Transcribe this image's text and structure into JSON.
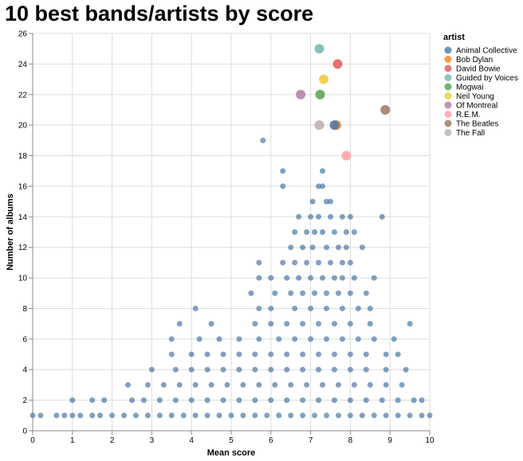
{
  "chart_data": {
    "type": "scatter",
    "title": "10 best bands/artists by score",
    "xlabel": "Mean score",
    "ylabel": "Number of albums",
    "xlim": [
      0,
      10
    ],
    "ylim": [
      0,
      26
    ],
    "x_ticks": [
      "0",
      "1",
      "2",
      "3",
      "4",
      "5",
      "6",
      "7",
      "8",
      "9",
      "10"
    ],
    "y_ticks": [
      "0",
      "2",
      "4",
      "6",
      "8",
      "10",
      "12",
      "14",
      "16",
      "18",
      "20",
      "22",
      "24",
      "26"
    ],
    "grid": true,
    "legend": {
      "title": "artist",
      "placement": "right",
      "entries": [
        {
          "name": "Animal Collective",
          "color": "#4c78a8"
        },
        {
          "name": "Bob Dylan",
          "color": "#f58518"
        },
        {
          "name": "David Bowie",
          "color": "#e45756"
        },
        {
          "name": "Guided by Voices",
          "color": "#72b7b2"
        },
        {
          "name": "Mogwai",
          "color": "#54a24b"
        },
        {
          "name": "Neil Young",
          "color": "#eeca3b"
        },
        {
          "name": "Of Montreal",
          "color": "#b279a2"
        },
        {
          "name": "R.E.M.",
          "color": "#ff9da6"
        },
        {
          "name": "The Beatles",
          "color": "#9d755d"
        },
        {
          "name": "The Fall",
          "color": "#bab0ac"
        }
      ]
    },
    "highlighted": [
      {
        "artist": "Guided by Voices",
        "x": 7.22,
        "y": 25
      },
      {
        "artist": "David Bowie",
        "x": 7.68,
        "y": 24
      },
      {
        "artist": "Neil Young",
        "x": 7.33,
        "y": 23
      },
      {
        "artist": "Of Montreal",
        "x": 6.75,
        "y": 22
      },
      {
        "artist": "Mogwai",
        "x": 7.24,
        "y": 22
      },
      {
        "artist": "The Beatles",
        "x": 8.88,
        "y": 21
      },
      {
        "artist": "The Fall",
        "x": 7.22,
        "y": 20
      },
      {
        "artist": "Bob Dylan",
        "x": 7.65,
        "y": 20
      },
      {
        "artist": "Animal Collective",
        "x": 7.6,
        "y": 20
      },
      {
        "artist": "R.E.M.",
        "x": 7.9,
        "y": 18
      }
    ],
    "other_artists_color": "#4c78a8",
    "other_artists_by_album_count": [
      {
        "y": 19,
        "x": [
          5.8
        ]
      },
      {
        "y": 17,
        "x": [
          6.3,
          7.3
        ]
      },
      {
        "y": 16,
        "x": [
          6.3,
          7.2,
          7.3
        ]
      },
      {
        "y": 15,
        "x": [
          7.05,
          7.4,
          7.5
        ]
      },
      {
        "y": 14,
        "x": [
          6.7,
          7.0,
          7.2,
          7.5,
          7.8,
          8.0,
          8.8
        ]
      },
      {
        "y": 13,
        "x": [
          6.6,
          6.9,
          7.1,
          7.3,
          7.6,
          7.9,
          8.1
        ]
      },
      {
        "y": 12,
        "x": [
          6.5,
          6.8,
          7.05,
          7.4,
          7.7,
          7.9,
          8.3
        ]
      },
      {
        "y": 11,
        "x": [
          5.7,
          6.3,
          6.6,
          6.9,
          7.2,
          7.5,
          7.8,
          8.0
        ]
      },
      {
        "y": 10,
        "x": [
          5.7,
          6.0,
          6.4,
          6.7,
          7.0,
          7.3,
          7.6,
          7.8,
          8.1,
          8.6
        ]
      },
      {
        "y": 9,
        "x": [
          5.5,
          6.1,
          6.5,
          6.8,
          7.1,
          7.4,
          7.7,
          8.0,
          8.4
        ]
      },
      {
        "y": 8,
        "x": [
          4.1,
          5.7,
          6.0,
          6.6,
          7.0,
          7.4,
          7.8,
          8.2,
          8.5
        ]
      },
      {
        "y": 7,
        "x": [
          3.7,
          4.5,
          5.6,
          6.0,
          6.4,
          6.8,
          7.2,
          7.6,
          8.0,
          8.5,
          9.5
        ]
      },
      {
        "y": 6,
        "x": [
          3.5,
          4.2,
          4.7,
          5.2,
          5.7,
          6.2,
          6.6,
          7.0,
          7.4,
          7.8,
          8.2,
          8.6,
          9.1
        ]
      },
      {
        "y": 5,
        "x": [
          3.5,
          4.0,
          4.4,
          4.8,
          5.2,
          5.6,
          6.0,
          6.4,
          6.8,
          7.2,
          7.6,
          8.0,
          8.4,
          8.9,
          9.2
        ]
      },
      {
        "y": 4,
        "x": [
          3.0,
          3.6,
          4.0,
          4.4,
          4.8,
          5.2,
          5.6,
          6.0,
          6.4,
          6.8,
          7.2,
          7.6,
          8.0,
          8.4,
          8.9,
          9.4
        ]
      },
      {
        "y": 3,
        "x": [
          2.4,
          2.9,
          3.3,
          3.7,
          4.1,
          4.5,
          4.9,
          5.3,
          5.7,
          6.1,
          6.5,
          6.9,
          7.3,
          7.7,
          8.1,
          8.5,
          8.9,
          9.3
        ]
      },
      {
        "y": 2,
        "x": [
          1.0,
          1.5,
          1.8,
          2.5,
          2.8,
          3.2,
          3.6,
          4.0,
          4.4,
          4.8,
          5.2,
          5.6,
          6.0,
          6.4,
          6.8,
          7.2,
          7.6,
          8.0,
          8.4,
          8.8,
          9.2,
          9.6,
          9.8
        ]
      },
      {
        "y": 1,
        "x": [
          0.0,
          0.2,
          0.6,
          0.8,
          1.0,
          1.2,
          1.5,
          1.7,
          2.0,
          2.3,
          2.6,
          2.9,
          3.2,
          3.5,
          3.8,
          4.1,
          4.4,
          4.7,
          5.0,
          5.3,
          5.6,
          5.9,
          6.2,
          6.5,
          6.8,
          7.1,
          7.4,
          7.7,
          8.0,
          8.3,
          8.6,
          8.9,
          9.2,
          9.5,
          9.8,
          10.0
        ]
      }
    ]
  }
}
